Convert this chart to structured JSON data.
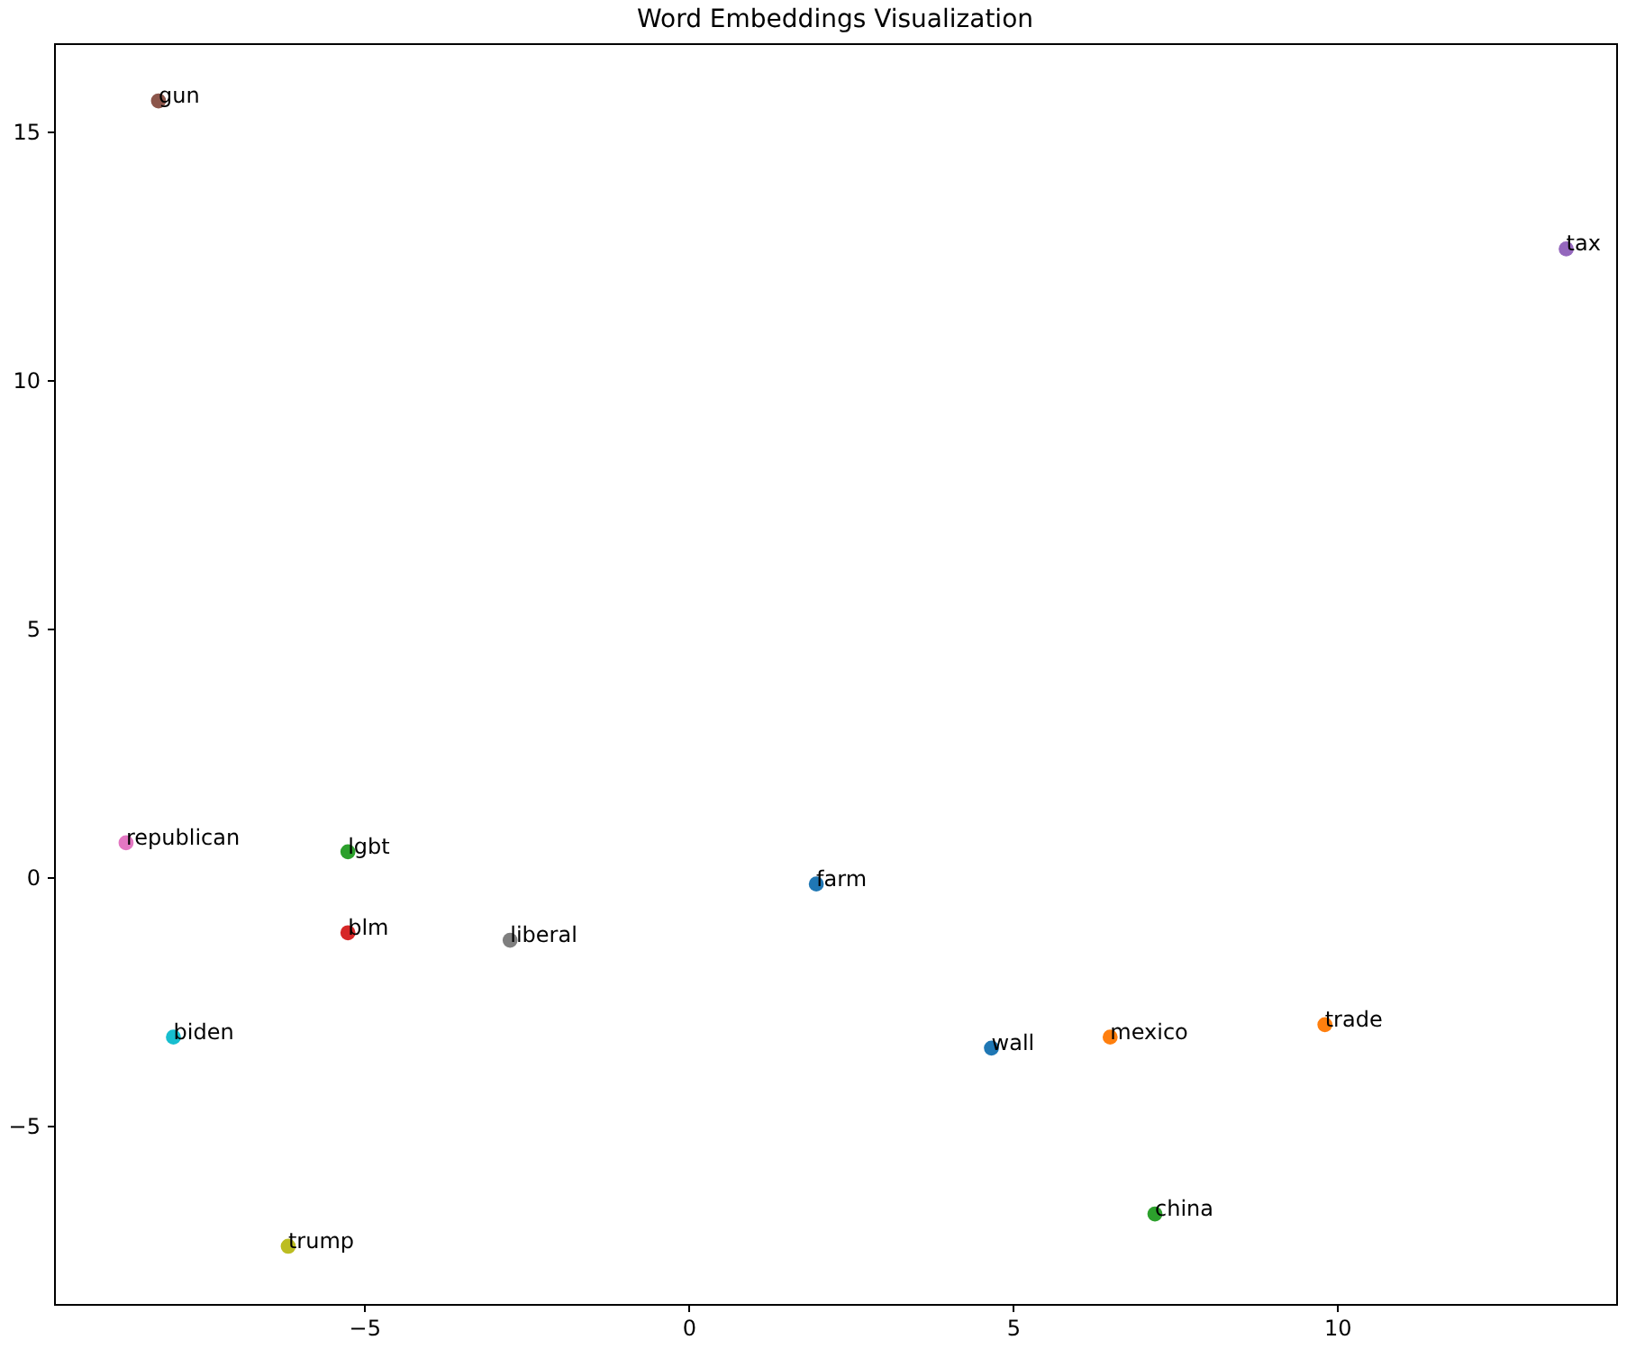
{
  "chart_data": {
    "type": "scatter",
    "title": "Word Embeddings Visualization",
    "marker": "circle",
    "xlim": [
      -9.78,
      14.3
    ],
    "ylim": [
      -8.59,
      16.78
    ],
    "xticks": [
      {
        "value": -5,
        "label": "−5"
      },
      0,
      5,
      10
    ],
    "yticks": [
      {
        "value": -5,
        "label": "−5"
      },
      0,
      5,
      10,
      15
    ],
    "series": [
      {
        "name": "wall",
        "color": "#1f77b4",
        "x": [
          4.67
        ],
        "values": [
          -3.44
        ]
      },
      {
        "name": "mexico",
        "color": "#ff7f0e",
        "x": [
          6.5
        ],
        "values": [
          -3.22
        ]
      },
      {
        "name": "china",
        "color": "#2ca02c",
        "x": [
          7.19
        ],
        "values": [
          -6.78
        ]
      },
      {
        "name": "blm",
        "color": "#d62728",
        "x": [
          -5.25
        ],
        "values": [
          -1.12
        ]
      },
      {
        "name": "tax",
        "color": "#9467bd",
        "x": [
          13.53
        ],
        "values": [
          12.64
        ]
      },
      {
        "name": "gun",
        "color": "#8c564b",
        "x": [
          -8.17
        ],
        "values": [
          15.62
        ]
      },
      {
        "name": "republican",
        "color": "#e377c2",
        "x": [
          -8.67
        ],
        "values": [
          0.69
        ]
      },
      {
        "name": "liberal",
        "color": "#7f7f7f",
        "x": [
          -2.75
        ],
        "values": [
          -1.27
        ]
      },
      {
        "name": "trump",
        "color": "#bcbd22",
        "x": [
          -6.17
        ],
        "values": [
          -7.43
        ]
      },
      {
        "name": "biden",
        "color": "#17becf",
        "x": [
          -7.94
        ],
        "values": [
          -3.22
        ]
      },
      {
        "name": "farm",
        "color": "#1f77b4",
        "x": [
          1.97
        ],
        "values": [
          -0.14
        ]
      },
      {
        "name": "trade",
        "color": "#ff7f0e",
        "x": [
          9.81
        ],
        "values": [
          -2.97
        ]
      },
      {
        "name": "lgbt",
        "color": "#2ca02c",
        "x": [
          -5.25
        ],
        "values": [
          0.51
        ]
      }
    ]
  }
}
